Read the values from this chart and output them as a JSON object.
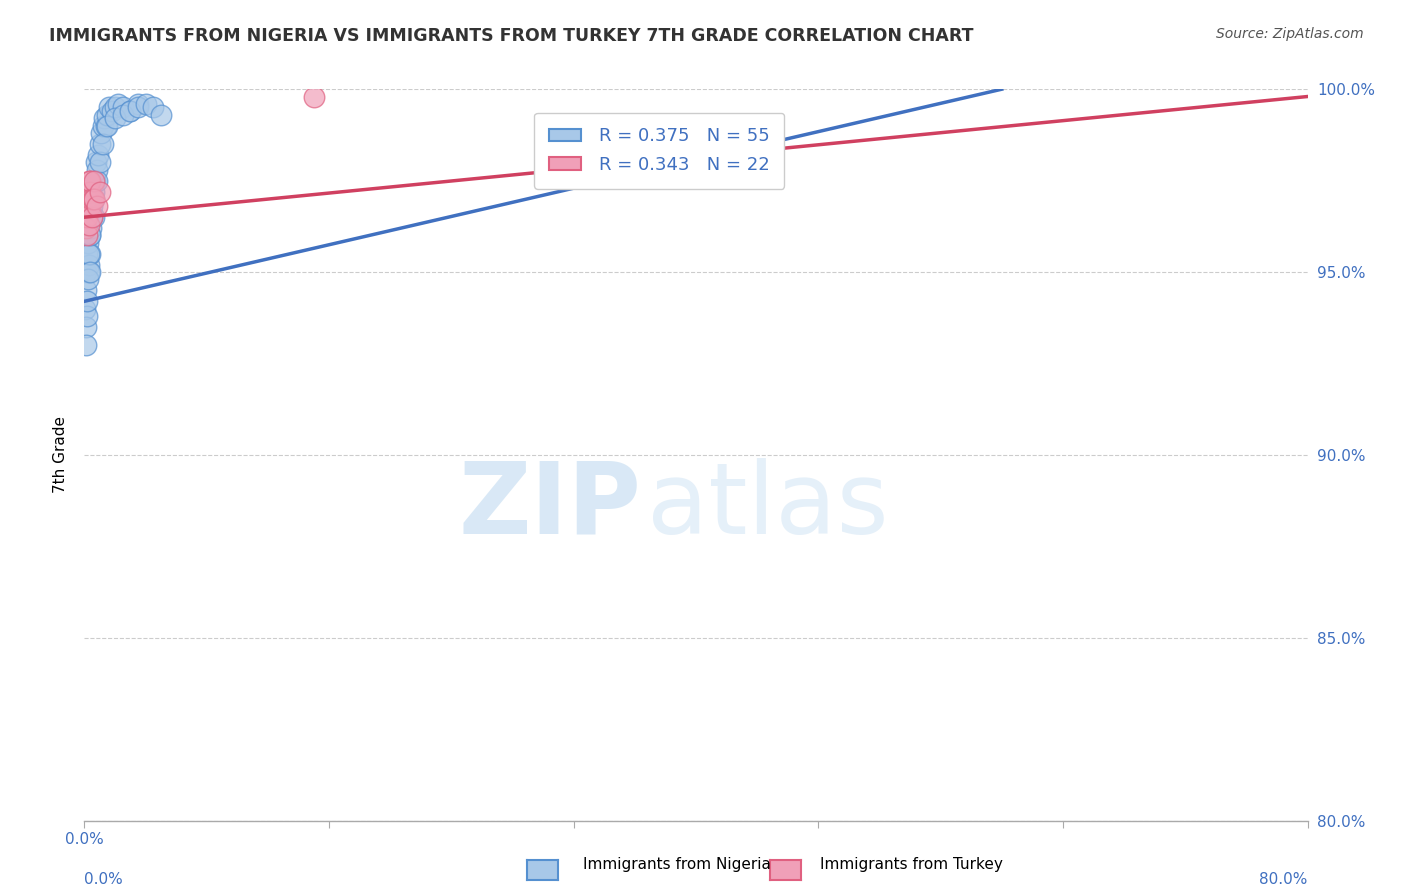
{
  "title": "IMMIGRANTS FROM NIGERIA VS IMMIGRANTS FROM TURKEY 7TH GRADE CORRELATION CHART",
  "source": "Source: ZipAtlas.com",
  "ylabel": "7th Grade",
  "xmin": 0.0,
  "xmax": 80.0,
  "ymin": 80.0,
  "ymax": 100.0,
  "yticks": [
    80.0,
    85.0,
    90.0,
    95.0,
    100.0
  ],
  "xticks": [
    0.0,
    16.0,
    32.0,
    48.0,
    64.0,
    80.0
  ],
  "nigeria_R": 0.375,
  "nigeria_N": 55,
  "turkey_R": 0.343,
  "turkey_N": 22,
  "nigeria_color": "#a8c8e8",
  "turkey_color": "#f0a0b8",
  "nigeria_edge_color": "#5590d0",
  "turkey_edge_color": "#e06080",
  "nigeria_line_color": "#4070c0",
  "turkey_line_color": "#d04060",
  "legend_label_nigeria": "Immigrants from Nigeria",
  "legend_label_turkey": "Immigrants from Turkey",
  "nigeria_x": [
    0.05,
    0.08,
    0.1,
    0.12,
    0.15,
    0.18,
    0.2,
    0.22,
    0.25,
    0.28,
    0.3,
    0.35,
    0.4,
    0.45,
    0.5,
    0.55,
    0.6,
    0.65,
    0.7,
    0.75,
    0.8,
    0.9,
    1.0,
    1.1,
    1.2,
    1.3,
    1.4,
    1.5,
    1.6,
    1.8,
    2.0,
    2.2,
    2.5,
    3.0,
    3.5,
    0.1,
    0.15,
    0.2,
    0.25,
    0.3,
    0.35,
    0.4,
    0.5,
    0.6,
    0.8,
    1.0,
    1.2,
    1.5,
    2.0,
    2.5,
    3.0,
    3.5,
    4.0,
    4.5,
    5.0
  ],
  "nigeria_y": [
    94.0,
    93.5,
    95.0,
    94.5,
    96.0,
    95.5,
    96.5,
    96.0,
    95.8,
    95.2,
    95.0,
    96.0,
    95.5,
    96.2,
    96.8,
    97.0,
    96.5,
    97.2,
    97.5,
    98.0,
    97.8,
    98.2,
    98.5,
    98.8,
    99.0,
    99.2,
    99.0,
    99.3,
    99.5,
    99.4,
    99.5,
    99.6,
    99.5,
    99.4,
    99.6,
    93.0,
    93.8,
    94.2,
    94.8,
    95.5,
    95.0,
    96.0,
    96.5,
    97.0,
    97.5,
    98.0,
    98.5,
    99.0,
    99.2,
    99.3,
    99.4,
    99.5,
    99.6,
    99.5,
    99.3
  ],
  "turkey_x": [
    0.05,
    0.1,
    0.12,
    0.15,
    0.18,
    0.2,
    0.22,
    0.25,
    0.28,
    0.3,
    0.32,
    0.35,
    0.38,
    0.4,
    0.45,
    0.5,
    0.55,
    0.6,
    0.65,
    0.8,
    1.0,
    15.0
  ],
  "turkey_y": [
    96.5,
    96.8,
    96.2,
    97.0,
    96.0,
    96.5,
    97.2,
    96.8,
    97.5,
    96.3,
    97.0,
    97.2,
    96.8,
    97.5,
    97.0,
    96.5,
    97.0,
    97.5,
    97.0,
    96.8,
    97.2,
    99.8
  ],
  "nigeria_trendline_x0": 0.0,
  "nigeria_trendline_y0": 94.2,
  "nigeria_trendline_x1": 60.0,
  "nigeria_trendline_y1": 100.0,
  "turkey_trendline_x0": 0.0,
  "turkey_trendline_y0": 96.5,
  "turkey_trendline_x1": 80.0,
  "turkey_trendline_y1": 99.8,
  "watermark_zip": "ZIP",
  "watermark_atlas": "atlas",
  "background_color": "#ffffff",
  "grid_color": "#cccccc",
  "text_color": "#4070c0",
  "title_color": "#333333"
}
